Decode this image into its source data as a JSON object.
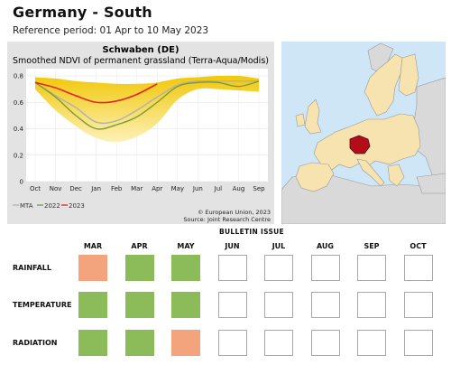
{
  "header": {
    "title": "Germany - South",
    "subtitle": "Reference period: 01 Apr to 10 May 2023"
  },
  "chart_data": {
    "type": "line",
    "title": "Schwaben (DE)",
    "subtitle": "Smoothed NDVI of permanent grassland (Terra-Aqua/Modis)",
    "x": [
      "Oct",
      "Nov",
      "Dec",
      "Jan",
      "Feb",
      "Mar",
      "Apr",
      "May",
      "Jun",
      "Jul",
      "Aug",
      "Sep"
    ],
    "ylim": [
      0,
      0.8
    ],
    "yticks": [
      0,
      0.2,
      0.4,
      0.6,
      0.8
    ],
    "band": {
      "upper": [
        0.79,
        0.78,
        0.76,
        0.75,
        0.74,
        0.74,
        0.75,
        0.78,
        0.79,
        0.8,
        0.8,
        0.78
      ],
      "lower": [
        0.7,
        0.54,
        0.42,
        0.33,
        0.3,
        0.34,
        0.44,
        0.62,
        0.7,
        0.7,
        0.69,
        0.68
      ]
    },
    "series": [
      {
        "name": "MTA",
        "color": "#b0b0b0",
        "values": [
          0.75,
          0.65,
          0.56,
          0.45,
          0.46,
          0.54,
          0.64,
          0.73,
          0.76,
          0.76,
          0.76,
          0.76
        ]
      },
      {
        "name": "2022",
        "color": "#7a9a3a",
        "values": [
          0.75,
          0.64,
          0.5,
          0.4,
          0.43,
          0.49,
          0.6,
          0.72,
          0.75,
          0.75,
          0.72,
          0.76
        ]
      },
      {
        "name": "2023",
        "color": "#e8231f",
        "values": [
          0.75,
          0.71,
          0.65,
          0.6,
          0.61,
          0.66,
          0.74,
          null,
          null,
          null,
          null,
          null
        ]
      }
    ],
    "credits": [
      "© European Union, 2023",
      "Source: Joint Research Centre"
    ]
  },
  "map": {
    "land_color": "#f7e3b0",
    "sea_color": "#cfe6f6",
    "highlight_color": "#b40d1a",
    "outside_color": "#d9d9d9"
  },
  "bulletin": {
    "title": "BULLETIN ISSUE",
    "months": [
      "MAR",
      "APR",
      "MAY",
      "JUN",
      "JUL",
      "AUG",
      "SEP",
      "OCT"
    ],
    "rows": [
      {
        "label": "RAINFALL",
        "cells": [
          "orange",
          "green",
          "green",
          "empty",
          "empty",
          "empty",
          "empty",
          "empty"
        ]
      },
      {
        "label": "TEMPERATURE",
        "cells": [
          "green",
          "green",
          "green",
          "empty",
          "empty",
          "empty",
          "empty",
          "empty"
        ]
      },
      {
        "label": "RADIATION",
        "cells": [
          "green",
          "green",
          "orange",
          "empty",
          "empty",
          "empty",
          "empty",
          "empty"
        ]
      }
    ],
    "colors": {
      "green": "#8cbc5a",
      "orange": "#f4a47c",
      "empty": "#ffffff"
    }
  }
}
